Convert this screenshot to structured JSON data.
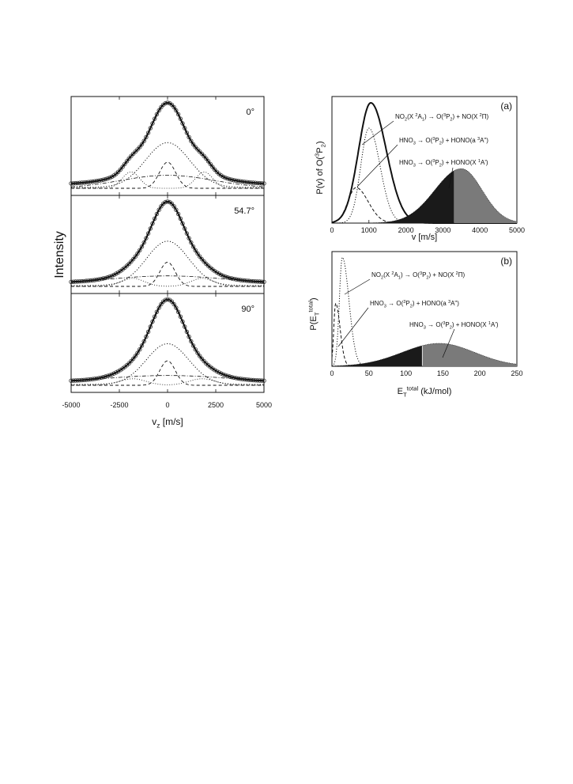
{
  "chart_data": [
    {
      "type": "line",
      "panel": "left",
      "ylabel": "Intensity",
      "xlabel_main": "v",
      "xlabel_sub": "z",
      "xlabel_unit": " [m/s]",
      "xlim": [
        -5000,
        5000
      ],
      "xticks": [
        -5000,
        -2500,
        0,
        2500,
        5000
      ],
      "subplots": [
        {
          "angle_label": "0°",
          "components": {
            "total_peak": 1.0,
            "total_width": 900,
            "dotted_peak": 0.55,
            "dotted_width": 1150,
            "dashed_peak": 0.32,
            "dashed_width": 420,
            "dashdot_peak": 0.16,
            "dashdot_width": 2400,
            "dashdot_center": 0,
            "shoulder_peak": 0.2,
            "shoulder_centers": [
              -1900,
              1900
            ],
            "shoulder_width": 450,
            "baseline": 0.05
          }
        },
        {
          "angle_label": "54.7°",
          "components": {
            "total_peak": 1.0,
            "total_width": 850,
            "dotted_peak": 0.55,
            "dotted_width": 1100,
            "dashed_peak": 0.3,
            "dashed_width": 400,
            "dashdot_peak": 0.13,
            "dashdot_width": 3500,
            "dashdot_center": 0,
            "shoulder_peak": 0.1,
            "shoulder_centers": [
              -1800,
              1800
            ],
            "shoulder_width": 600,
            "baseline": 0.05
          }
        },
        {
          "angle_label": "90°",
          "components": {
            "total_peak": 1.0,
            "total_width": 850,
            "dotted_peak": 0.5,
            "dotted_width": 1100,
            "dashed_peak": 0.3,
            "dashed_width": 400,
            "dashdot_peak": 0.12,
            "dashdot_width": 3800,
            "dashdot_center": 0,
            "shoulder_peak": 0.08,
            "shoulder_centers": [
              -1800,
              1800
            ],
            "shoulder_width": 700,
            "baseline": 0.05
          }
        }
      ]
    },
    {
      "type": "area",
      "panel": "a",
      "panel_label": "(a)",
      "ylabel_parts": [
        "P(v) of O(",
        "3",
        "P",
        "2",
        ")"
      ],
      "xlabel": "v [m/s]",
      "xlim": [
        0,
        5000
      ],
      "xticks": [
        0,
        1000,
        2000,
        3000,
        4000,
        5000
      ],
      "series": [
        {
          "style": "solid",
          "peak_x": 1050,
          "peak_y": 0.95,
          "width_left": 330,
          "width_right": 420
        },
        {
          "style": "dotted",
          "peak_x": 1000,
          "peak_y": 0.75,
          "width_left": 220,
          "width_right": 300
        },
        {
          "style": "dashed",
          "peak_x": 650,
          "peak_y": 0.28,
          "width_left": 220,
          "width_right": 330
        },
        {
          "style": "filled",
          "peak_x": 3500,
          "peak_y": 0.43,
          "width_left": 720,
          "width_right": 560,
          "dark_until": 3300
        }
      ],
      "annotations": [
        {
          "parts": [
            [
              "NO",
              ""
            ],
            [
              "2",
              "sub"
            ],
            [
              "(X ",
              ""
            ],
            [
              "2",
              "sup"
            ],
            [
              "A",
              ""
            ],
            [
              "1",
              "sub"
            ],
            [
              ") → O(",
              ""
            ],
            [
              "3",
              "sup"
            ],
            [
              "P",
              ""
            ],
            [
              "2",
              "sub"
            ],
            [
              ") + NO(X ",
              ""
            ],
            [
              "2",
              "sup"
            ],
            [
              "Π)",
              ""
            ]
          ]
        },
        {
          "parts": [
            [
              "HNO",
              ""
            ],
            [
              "3",
              "sub"
            ],
            [
              " → O(",
              ""
            ],
            [
              "3",
              "sup"
            ],
            [
              "P",
              ""
            ],
            [
              "2",
              "sub"
            ],
            [
              ") + HONO(a ",
              ""
            ],
            [
              "3",
              "sup"
            ],
            [
              "A\")",
              ""
            ]
          ]
        },
        {
          "parts": [
            [
              "HNO",
              ""
            ],
            [
              "3",
              "sub"
            ],
            [
              " → O(",
              ""
            ],
            [
              "3",
              "sup"
            ],
            [
              "P",
              ""
            ],
            [
              "2",
              "sub"
            ],
            [
              ") + HONO(X ",
              ""
            ],
            [
              "1",
              "sup"
            ],
            [
              "A')",
              ""
            ]
          ]
        }
      ]
    },
    {
      "type": "area",
      "panel": "b",
      "panel_label": "(b)",
      "ylabel_parts": [
        "P(E",
        "T",
        "total",
        ")"
      ],
      "xlabel_parts": [
        "E",
        "T",
        "total",
        " (kJ/mol)"
      ],
      "xlim": [
        0,
        250
      ],
      "xticks": [
        0,
        50,
        100,
        150,
        200,
        250
      ],
      "series": [
        {
          "style": "dotted",
          "peak_x": 14,
          "peak_y": 0.95,
          "width_left": 4,
          "width_right": 9
        },
        {
          "style": "dashed",
          "peak_x": 5,
          "peak_y": 0.55,
          "width_left": 2.5,
          "width_right": 6
        },
        {
          "style": "filled",
          "peak_x": 145,
          "peak_y": 0.2,
          "width_left": 50,
          "width_right": 48,
          "dark_until": 122
        }
      ],
      "annotations": [
        {
          "parts": [
            [
              "NO",
              ""
            ],
            [
              "2",
              "sub"
            ],
            [
              "(X ",
              ""
            ],
            [
              "2",
              "sup"
            ],
            [
              "A",
              ""
            ],
            [
              "1",
              "sub"
            ],
            [
              ") → O(",
              ""
            ],
            [
              "3",
              "sup"
            ],
            [
              "P",
              ""
            ],
            [
              "2",
              "sub"
            ],
            [
              ") + NO(X ",
              ""
            ],
            [
              "2",
              "sup"
            ],
            [
              "Π)",
              ""
            ]
          ]
        },
        {
          "parts": [
            [
              "HNO",
              ""
            ],
            [
              "3",
              "sub"
            ],
            [
              " → O(",
              ""
            ],
            [
              "3",
              "sup"
            ],
            [
              "P",
              ""
            ],
            [
              "2",
              "sub"
            ],
            [
              ") + HONO(a ",
              ""
            ],
            [
              "3",
              "sup"
            ],
            [
              "A\")",
              ""
            ]
          ]
        },
        {
          "parts": [
            [
              "HNO",
              ""
            ],
            [
              "3",
              "sub"
            ],
            [
              " → O(",
              ""
            ],
            [
              "3",
              "sup"
            ],
            [
              "P",
              ""
            ],
            [
              "2",
              "sub"
            ],
            [
              ") + HONO(X ",
              ""
            ],
            [
              "1",
              "sup"
            ],
            [
              "A')",
              ""
            ]
          ]
        }
      ]
    }
  ]
}
